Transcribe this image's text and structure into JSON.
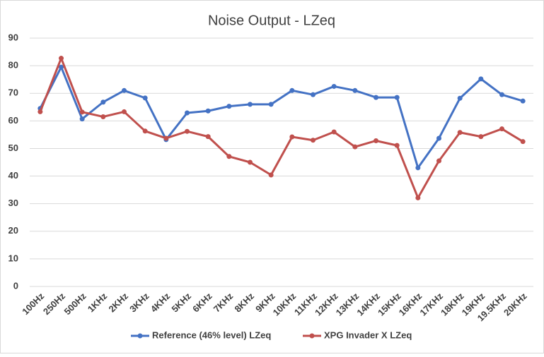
{
  "chart_data": {
    "type": "line",
    "title": "Noise Output  - LZeq",
    "categories": [
      "100Hz",
      "250Hz",
      "500Hz",
      "1KHz",
      "2KHz",
      "3KHz",
      "4KHz",
      "5KHz",
      "6KHz",
      "7KHz",
      "8KHz",
      "9KHz",
      "10KHz",
      "11KHz",
      "12KHz",
      "13KHz",
      "14KHz",
      "15KHz",
      "16KHz",
      "17KHz",
      "18KHz",
      "19KHz",
      "19.5KHz",
      "20KHz"
    ],
    "series": [
      {
        "name": "Reference (46% level) LZeq",
        "color": "#4472c4",
        "values": [
          64.5,
          79.5,
          60.7,
          66.8,
          71,
          68.3,
          53.2,
          62.9,
          63.6,
          65.3,
          66,
          66,
          71,
          69.5,
          72.5,
          71,
          68.5,
          68.5,
          43,
          53.7,
          68.2,
          75.2,
          69.5,
          67.2
        ]
      },
      {
        "name": "XPG Invader X LZeq",
        "color": "#c0504d",
        "values": [
          63.3,
          82.7,
          63.2,
          61.5,
          63.3,
          56.3,
          53.7,
          56.2,
          54.3,
          47.1,
          45,
          40.4,
          54.2,
          53,
          56,
          50.6,
          52.8,
          51.1,
          32.1,
          45.5,
          55.8,
          54.3,
          57.1,
          52.5
        ]
      }
    ],
    "ylim": [
      0,
      90
    ],
    "yticks": [
      0,
      10,
      20,
      30,
      40,
      50,
      60,
      70,
      80,
      90
    ],
    "grid": true,
    "legend": "bottom"
  }
}
